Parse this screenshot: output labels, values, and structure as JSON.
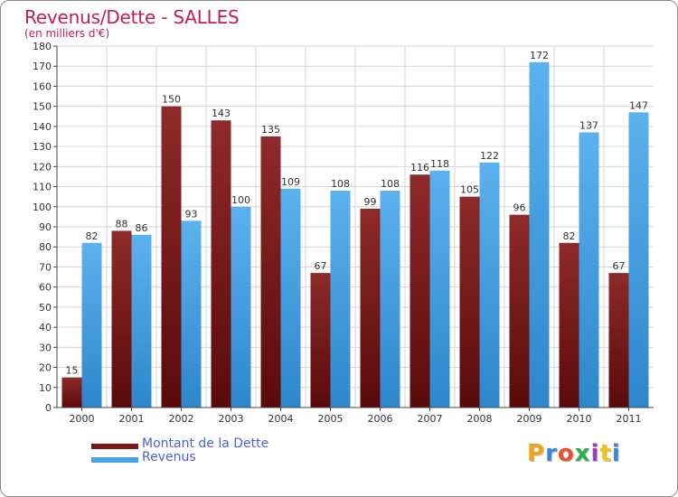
{
  "chart_data": {
    "type": "bar",
    "title": "Revenus/Dette - SALLES",
    "subtitle": "(en milliers d'€)",
    "categories": [
      "2000",
      "2001",
      "2002",
      "2003",
      "2004",
      "2005",
      "2006",
      "2007",
      "2008",
      "2009",
      "2010",
      "2011"
    ],
    "series": [
      {
        "name": "Montant de la Dette",
        "color": "#7a1717",
        "values": [
          15,
          88,
          150,
          143,
          135,
          67,
          99,
          116,
          105,
          96,
          82,
          67
        ]
      },
      {
        "name": "Revenus",
        "color": "#4aa3e6",
        "values": [
          82,
          86,
          93,
          100,
          109,
          108,
          108,
          118,
          122,
          172,
          137,
          147
        ]
      }
    ],
    "ylim": [
      0,
      180
    ],
    "ytick_step": 10,
    "grid": true,
    "legend": "bottom-left"
  },
  "logo": {
    "text": "Proxiti",
    "colors": [
      "#f2a21c",
      "#3b87d6",
      "#e5522a",
      "#2fae4a",
      "#9b3fb5",
      "#f2c21c",
      "#3b87d6"
    ]
  }
}
